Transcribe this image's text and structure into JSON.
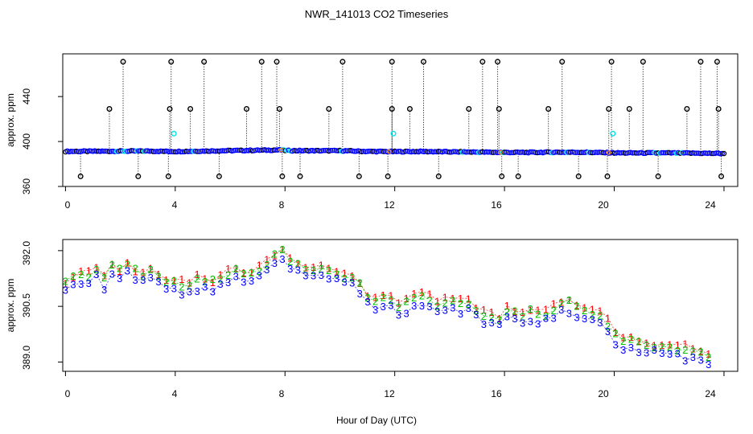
{
  "chart_data": {
    "title": "NWR_141013  CO2 Timeseries",
    "xlabel": "Hour of Day (UTC)",
    "x_ticks": [
      "0",
      "4",
      "8",
      "12",
      "16",
      "20",
      "24"
    ],
    "colors": {
      "black": "#000000",
      "blue": "#0000ff",
      "cyan": "#00e5e5",
      "red": "#ff0000",
      "green": "#00c000",
      "orange": "#ff8c00"
    },
    "panels": [
      {
        "type": "scatter",
        "name": "raw",
        "ylabel": "approx. ppm",
        "xlim": [
          -0.1,
          24.5
        ],
        "ylim": [
          360,
          478
        ],
        "y_ticks": [
          360,
          400,
          440
        ],
        "baseline": [
          [
            0,
            391.2
          ],
          [
            1,
            391.3
          ],
          [
            2,
            391.4
          ],
          [
            3,
            391.5
          ],
          [
            4,
            391.1
          ],
          [
            5,
            391.5
          ],
          [
            6,
            391.9
          ],
          [
            7,
            392.2
          ],
          [
            7.8,
            392.5
          ],
          [
            8.1,
            391.9
          ],
          [
            9,
            391.8
          ],
          [
            10,
            391.8
          ],
          [
            11,
            391.2
          ],
          [
            12,
            391
          ],
          [
            13,
            391.1
          ],
          [
            14,
            390.8
          ],
          [
            15,
            390.6
          ],
          [
            16,
            390.3
          ],
          [
            17,
            390.3
          ],
          [
            18,
            390.5
          ],
          [
            19,
            390.4
          ],
          [
            20,
            389.9
          ],
          [
            21,
            389.8
          ],
          [
            22,
            389.8
          ],
          [
            23,
            389.6
          ],
          [
            23.8,
            389.4
          ]
        ],
        "spikes_high": [
          [
            2.1,
            471
          ],
          [
            3.85,
            471
          ],
          [
            5.05,
            471
          ],
          [
            7.15,
            471
          ],
          [
            7.7,
            471
          ],
          [
            10.1,
            471
          ],
          [
            11.9,
            471
          ],
          [
            13.05,
            471
          ],
          [
            15.2,
            471
          ],
          [
            15.75,
            471
          ],
          [
            18.1,
            471
          ],
          [
            19.9,
            471
          ],
          [
            21.05,
            471
          ],
          [
            23.15,
            471
          ],
          [
            23.75,
            471
          ],
          [
            1.6,
            429
          ],
          [
            3.8,
            429
          ],
          [
            4.55,
            429
          ],
          [
            6.6,
            429
          ],
          [
            7.8,
            429
          ],
          [
            9.6,
            429
          ],
          [
            11.9,
            429
          ],
          [
            12.55,
            429
          ],
          [
            14.7,
            429
          ],
          [
            15.8,
            429
          ],
          [
            17.6,
            429
          ],
          [
            19.8,
            429
          ],
          [
            20.55,
            429
          ],
          [
            22.65,
            429
          ],
          [
            23.8,
            429
          ]
        ],
        "spikes_low": [
          [
            0.55,
            369
          ],
          [
            2.65,
            369
          ],
          [
            3.75,
            369
          ],
          [
            5.6,
            369
          ],
          [
            7.9,
            369
          ],
          [
            8.55,
            369
          ],
          [
            10.7,
            369
          ],
          [
            11.75,
            369
          ],
          [
            13.6,
            369
          ],
          [
            15.9,
            369
          ],
          [
            16.5,
            369
          ],
          [
            18.7,
            369
          ],
          [
            19.75,
            369
          ],
          [
            21.6,
            369
          ],
          [
            23.9,
            369
          ]
        ],
        "cyan_points": [
          [
            3.95,
            407
          ],
          [
            11.95,
            407
          ],
          [
            19.95,
            407
          ]
        ]
      },
      {
        "type": "line",
        "name": "smoothed",
        "ylabel": "approx. ppm",
        "xlim": [
          -0.1,
          24.5
        ],
        "ylim": [
          388.75,
          392.3
        ],
        "y_ticks": [
          "389.0",
          "390.5",
          "392.0"
        ],
        "y_tick_values": [
          389.0,
          390.5,
          392.0
        ],
        "series": [
          {
            "name": "1",
            "label": "1",
            "color": "#ff0000",
            "offset": 0.16
          },
          {
            "name": "2",
            "label": "2",
            "color": "#00c000",
            "offset": 0.08
          },
          {
            "name": "3",
            "label": "3",
            "color": "#0000ff",
            "offset": -0.12
          }
        ],
        "points": [
          [
            0,
            391.05
          ],
          [
            0.3,
            391.2
          ],
          [
            0.6,
            391.25
          ],
          [
            0.9,
            391.3
          ],
          [
            1.2,
            391.5
          ],
          [
            1.4,
            391.15
          ],
          [
            1.7,
            391.5
          ],
          [
            2,
            391.35
          ],
          [
            2.3,
            391.55
          ],
          [
            2.7,
            391.25
          ],
          [
            3,
            391.35
          ],
          [
            3.3,
            391.3
          ],
          [
            3.6,
            391.25
          ],
          [
            3.8,
            390.9
          ],
          [
            4,
            391.2
          ],
          [
            4.3,
            390.95
          ],
          [
            4.6,
            391.1
          ],
          [
            5,
            391.15
          ],
          [
            5.3,
            391.05
          ],
          [
            5.6,
            391.2
          ],
          [
            6,
            391.3
          ],
          [
            6.3,
            391.4
          ],
          [
            6.6,
            391.15
          ],
          [
            7,
            391.4
          ],
          [
            7.3,
            391.55
          ],
          [
            7.6,
            391.75
          ],
          [
            7.8,
            392.05
          ],
          [
            8,
            391.8
          ],
          [
            8.3,
            391.6
          ],
          [
            8.6,
            391.5
          ],
          [
            9,
            391.4
          ],
          [
            9.3,
            391.45
          ],
          [
            9.6,
            391.35
          ],
          [
            10,
            391.3
          ],
          [
            10.3,
            391.15
          ],
          [
            10.6,
            391.25
          ],
          [
            10.8,
            390.95
          ],
          [
            11.1,
            390.55
          ],
          [
            11.4,
            390.65
          ],
          [
            11.8,
            390.7
          ],
          [
            12,
            390.45
          ],
          [
            12.3,
            390.5
          ],
          [
            12.6,
            390.55
          ],
          [
            12.9,
            390.7
          ],
          [
            13.2,
            390.65
          ],
          [
            13.6,
            390.5
          ],
          [
            14,
            390.55
          ],
          [
            14.3,
            390.5
          ],
          [
            14.6,
            390.55
          ],
          [
            14.9,
            390.35
          ],
          [
            15.2,
            390.2
          ],
          [
            15.5,
            390.15
          ],
          [
            15.8,
            390.05
          ],
          [
            16,
            390.3
          ],
          [
            16.3,
            390.35
          ],
          [
            16.6,
            390.1
          ],
          [
            17,
            390.3
          ],
          [
            17.3,
            390.15
          ],
          [
            17.6,
            390.25
          ],
          [
            18,
            390.45
          ],
          [
            18.3,
            390.55
          ],
          [
            18.6,
            390.4
          ],
          [
            19,
            390.25
          ],
          [
            19.3,
            390.25
          ],
          [
            19.6,
            390.2
          ],
          [
            19.9,
            389.8
          ],
          [
            20,
            389.65
          ],
          [
            20.3,
            389.55
          ],
          [
            20.6,
            389.5
          ],
          [
            21,
            389.45
          ],
          [
            21.3,
            389.35
          ],
          [
            21.6,
            389.4
          ],
          [
            22,
            389.35
          ],
          [
            22.3,
            389.3
          ],
          [
            22.6,
            389.25
          ],
          [
            23,
            389.2
          ],
          [
            23.3,
            389.05
          ],
          [
            23.6,
            389.15
          ]
        ]
      }
    ]
  }
}
